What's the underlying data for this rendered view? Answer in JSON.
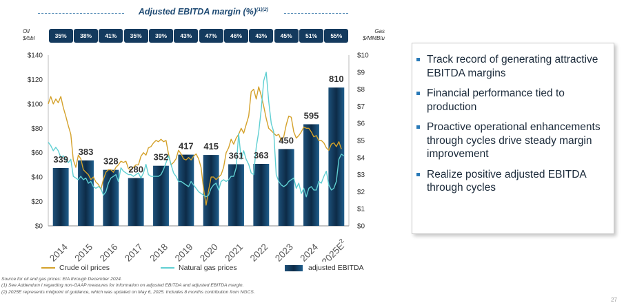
{
  "chart_data": {
    "type": "bar+line",
    "title": "Adjusted EBITDA margin (%)",
    "title_sup": "(1)(2)",
    "categories": [
      "2014",
      "2015",
      "2016",
      "2017",
      "2018",
      "2019",
      "2020",
      "2021",
      "2022",
      "2023",
      "2024",
      "2025E"
    ],
    "category_sup": {
      "2025E": "2"
    },
    "margins": [
      "35%",
      "38%",
      "41%",
      "35%",
      "39%",
      "43%",
      "47%",
      "46%",
      "43%",
      "45%",
      "51%",
      "55%"
    ],
    "bars": {
      "name": "adjusted EBITDA",
      "values": [
        339,
        383,
        328,
        280,
        352,
        417,
        415,
        361,
        363,
        450,
        595,
        810
      ],
      "labels": [
        "339",
        "383",
        "328",
        "280",
        "352",
        "417",
        "415",
        "361",
        "363",
        "450",
        "595",
        "810"
      ]
    },
    "series": [
      {
        "name": "Crude oil prices",
        "axis": "left",
        "color": "#d4a12a",
        "points": [
          [
            0,
            100
          ],
          [
            0.1,
            106
          ],
          [
            0.2,
            100
          ],
          [
            0.3,
            104
          ],
          [
            0.4,
            101
          ],
          [
            0.5,
            106
          ],
          [
            0.6,
            97
          ],
          [
            0.7,
            90
          ],
          [
            0.8,
            82
          ],
          [
            0.9,
            75
          ],
          [
            1.0,
            54
          ],
          [
            1.1,
            48
          ],
          [
            1.2,
            58
          ],
          [
            1.3,
            55
          ],
          [
            1.4,
            46
          ],
          [
            1.5,
            44
          ],
          [
            1.6,
            42
          ],
          [
            1.7,
            38
          ],
          [
            1.8,
            40
          ],
          [
            1.9,
            36
          ],
          [
            2.0,
            34
          ],
          [
            2.1,
            30
          ],
          [
            2.2,
            38
          ],
          [
            2.3,
            44
          ],
          [
            2.4,
            46
          ],
          [
            2.5,
            46
          ],
          [
            2.6,
            44
          ],
          [
            2.7,
            48
          ],
          [
            2.8,
            50
          ],
          [
            2.9,
            53
          ],
          [
            3.0,
            52
          ],
          [
            3.1,
            53
          ],
          [
            3.2,
            47
          ],
          [
            3.3,
            46
          ],
          [
            3.4,
            48
          ],
          [
            3.5,
            50
          ],
          [
            3.6,
            50
          ],
          [
            3.7,
            57
          ],
          [
            3.8,
            60
          ],
          [
            3.9,
            58
          ],
          [
            4.0,
            64
          ],
          [
            4.1,
            65
          ],
          [
            4.2,
            68
          ],
          [
            4.3,
            70
          ],
          [
            4.4,
            69
          ],
          [
            4.5,
            71
          ],
          [
            4.6,
            69
          ],
          [
            4.7,
            70
          ],
          [
            4.8,
            59
          ],
          [
            4.9,
            50
          ],
          [
            5.0,
            52
          ],
          [
            5.1,
            55
          ],
          [
            5.2,
            62
          ],
          [
            5.3,
            59
          ],
          [
            5.4,
            55
          ],
          [
            5.5,
            54
          ],
          [
            5.6,
            56
          ],
          [
            5.7,
            54
          ],
          [
            5.8,
            57
          ],
          [
            5.9,
            59
          ],
          [
            6.0,
            55
          ],
          [
            6.1,
            48
          ],
          [
            6.2,
            30
          ],
          [
            6.3,
            17
          ],
          [
            6.4,
            29
          ],
          [
            6.5,
            40
          ],
          [
            6.6,
            40
          ],
          [
            6.7,
            38
          ],
          [
            6.8,
            40
          ],
          [
            6.9,
            42
          ],
          [
            7.0,
            48
          ],
          [
            7.1,
            60
          ],
          [
            7.2,
            64
          ],
          [
            7.3,
            71
          ],
          [
            7.4,
            67
          ],
          [
            7.5,
            72
          ],
          [
            7.6,
            75
          ],
          [
            7.7,
            80
          ],
          [
            7.8,
            76
          ],
          [
            7.9,
            83
          ],
          [
            8.0,
            90
          ],
          [
            8.1,
            110
          ],
          [
            8.2,
            112
          ],
          [
            8.3,
            104
          ],
          [
            8.4,
            114
          ],
          [
            8.5,
            107
          ],
          [
            8.6,
            98
          ],
          [
            8.7,
            88
          ],
          [
            8.8,
            80
          ],
          [
            8.9,
            78
          ],
          [
            9.0,
            76
          ],
          [
            9.1,
            74
          ],
          [
            9.2,
            75
          ],
          [
            9.3,
            70
          ],
          [
            9.4,
            73
          ],
          [
            9.5,
            83
          ],
          [
            9.6,
            90
          ],
          [
            9.7,
            89
          ],
          [
            9.8,
            77
          ],
          [
            9.9,
            72
          ],
          [
            10.0,
            74
          ],
          [
            10.1,
            77
          ],
          [
            10.2,
            81
          ],
          [
            10.3,
            80
          ],
          [
            10.4,
            80
          ],
          [
            10.5,
            77
          ],
          [
            10.6,
            73
          ],
          [
            10.7,
            74
          ],
          [
            10.8,
            70
          ],
          [
            10.9,
            70
          ],
          [
            11.0,
            68
          ],
          [
            11.1,
            64
          ],
          [
            11.2,
            62
          ],
          [
            11.3,
            67
          ],
          [
            11.4,
            68
          ],
          [
            11.5,
            65
          ],
          [
            11.6,
            69
          ],
          [
            11.7,
            63
          ]
        ]
      },
      {
        "name": "Natural gas prices",
        "axis": "right",
        "color": "#5fcfd2",
        "points": [
          [
            0,
            4.9
          ],
          [
            0.1,
            4.7
          ],
          [
            0.2,
            4.4
          ],
          [
            0.3,
            4.6
          ],
          [
            0.4,
            4.4
          ],
          [
            0.5,
            4.0
          ],
          [
            0.6,
            4.1
          ],
          [
            0.7,
            3.9
          ],
          [
            0.8,
            3.7
          ],
          [
            0.9,
            3.9
          ],
          [
            1.0,
            2.9
          ],
          [
            1.1,
            2.8
          ],
          [
            1.2,
            2.7
          ],
          [
            1.3,
            2.9
          ],
          [
            1.4,
            2.7
          ],
          [
            1.5,
            2.8
          ],
          [
            1.6,
            2.5
          ],
          [
            1.7,
            2.6
          ],
          [
            1.8,
            2.3
          ],
          [
            1.9,
            2.2
          ],
          [
            2.0,
            2.3
          ],
          [
            2.1,
            2.2
          ],
          [
            2.2,
            1.8
          ],
          [
            2.3,
            2.0
          ],
          [
            2.4,
            2.5
          ],
          [
            2.5,
            2.8
          ],
          [
            2.6,
            2.9
          ],
          [
            2.7,
            3.0
          ],
          [
            2.8,
            2.6
          ],
          [
            2.9,
            3.4
          ],
          [
            3.0,
            3.2
          ],
          [
            3.1,
            3.1
          ],
          [
            3.2,
            3.0
          ],
          [
            3.3,
            3.0
          ],
          [
            3.4,
            2.9
          ],
          [
            3.5,
            3.0
          ],
          [
            3.6,
            3.1
          ],
          [
            3.7,
            2.8
          ],
          [
            3.8,
            3.1
          ],
          [
            3.9,
            3.6
          ],
          [
            4.0,
            3.0
          ],
          [
            4.1,
            2.9
          ],
          [
            4.2,
            2.9
          ],
          [
            4.3,
            2.9
          ],
          [
            4.4,
            2.9
          ],
          [
            4.5,
            3.0
          ],
          [
            4.6,
            3.3
          ],
          [
            4.7,
            3.7
          ],
          [
            4.8,
            4.1
          ],
          [
            4.9,
            3.6
          ],
          [
            5.0,
            3.1
          ],
          [
            5.1,
            2.9
          ],
          [
            5.2,
            2.6
          ],
          [
            5.3,
            2.6
          ],
          [
            5.4,
            2.5
          ],
          [
            5.5,
            2.4
          ],
          [
            5.6,
            2.3
          ],
          [
            5.7,
            2.6
          ],
          [
            5.8,
            2.4
          ],
          [
            5.9,
            2.2
          ],
          [
            6.0,
            2.0
          ],
          [
            6.1,
            1.9
          ],
          [
            6.2,
            1.8
          ],
          [
            6.3,
            1.7
          ],
          [
            6.4,
            1.8
          ],
          [
            6.5,
            2.2
          ],
          [
            6.6,
            2.4
          ],
          [
            6.7,
            2.5
          ],
          [
            6.8,
            2.1
          ],
          [
            6.9,
            2.6
          ],
          [
            7.0,
            2.7
          ],
          [
            7.1,
            2.6
          ],
          [
            7.2,
            2.7
          ],
          [
            7.3,
            2.9
          ],
          [
            7.4,
            2.9
          ],
          [
            7.5,
            3.4
          ],
          [
            7.6,
            5.4
          ],
          [
            7.7,
            3.9
          ],
          [
            7.8,
            4.4
          ],
          [
            7.9,
            3.9
          ],
          [
            8.0,
            3.6
          ],
          [
            8.1,
            3.1
          ],
          [
            8.2,
            3.0
          ],
          [
            8.3,
            4.6
          ],
          [
            8.4,
            5.5
          ],
          [
            8.5,
            6.8
          ],
          [
            8.6,
            8.5
          ],
          [
            8.7,
            9.0
          ],
          [
            8.8,
            7.3
          ],
          [
            8.9,
            6.0
          ],
          [
            9.0,
            5.5
          ],
          [
            9.1,
            3.0
          ],
          [
            9.2,
            2.6
          ],
          [
            9.3,
            2.4
          ],
          [
            9.4,
            2.3
          ],
          [
            9.5,
            2.4
          ],
          [
            9.6,
            2.6
          ],
          [
            9.7,
            2.7
          ],
          [
            9.8,
            2.8
          ],
          [
            9.9,
            2.2
          ],
          [
            10.0,
            2.5
          ],
          [
            10.1,
            1.9
          ],
          [
            10.2,
            2.2
          ],
          [
            10.3,
            1.7
          ],
          [
            10.4,
            2.2
          ],
          [
            10.5,
            2.3
          ],
          [
            10.6,
            2.1
          ],
          [
            10.7,
            2.1
          ],
          [
            10.8,
            2.6
          ],
          [
            10.9,
            2.5
          ],
          [
            11.0,
            2.9
          ],
          [
            11.1,
            3.2
          ],
          [
            11.2,
            2.4
          ],
          [
            11.3,
            2.1
          ],
          [
            11.4,
            2.2
          ],
          [
            11.5,
            2.6
          ],
          [
            11.6,
            3.9
          ],
          [
            11.7,
            4.2
          ],
          [
            11.8,
            4.1
          ]
        ]
      }
    ],
    "left_axis": {
      "label": "Oil $/bbl",
      "min": 0,
      "max": 140,
      "ticks": [
        "$0",
        "$20",
        "$40",
        "$60",
        "$80",
        "$100",
        "$120",
        "$140"
      ]
    },
    "right_axis": {
      "label": "Gas $/MMBtu",
      "min": 0,
      "max": 10,
      "ticks": [
        "$0",
        "$1",
        "$2",
        "$3",
        "$4",
        "$5",
        "$6",
        "$7",
        "$8",
        "$9",
        "$10"
      ]
    },
    "bar_axis": {
      "min": 0,
      "max": 1000
    },
    "grid": false,
    "legend": "bottom"
  },
  "colors": {
    "bar_top": "#1d5079",
    "bar_mid": "#0d2b47",
    "bar_bottom": "#1e5d8c",
    "margin_box": "#143a5e",
    "accent": "#2a7ab8"
  },
  "header": {
    "title": "Adjusted EBITDA margin (%)",
    "title_sup": "(1)(2)",
    "oil_unit_1": "Oil",
    "oil_unit_2": "$/bbl",
    "gas_unit_1": "Gas",
    "gas_unit_2": "$/MMBtu"
  },
  "legend": {
    "oil": "Crude oil prices",
    "gas": "Natural gas prices",
    "ebitda": "adjusted EBITDA"
  },
  "footnotes": [
    "Source for oil and gas prices: EIA through December 2024.",
    "(1)     See Addendum I regarding non-GAAP measures for information on adjusted EBITDA and adjusted EBITDA margin.",
    "(2)     2025E represents midpoint of guidance, which was updated on May 6, 2025. Includes 8 months contribution from NGCS."
  ],
  "bullets": [
    "Track record of generating attractive EBITDA margins",
    "Financial performance tied to production",
    "Proactive operational enhancements through cycles drive steady margin improvement",
    "Realize positive adjusted EBITDA through cycles"
  ],
  "page_number": "27"
}
